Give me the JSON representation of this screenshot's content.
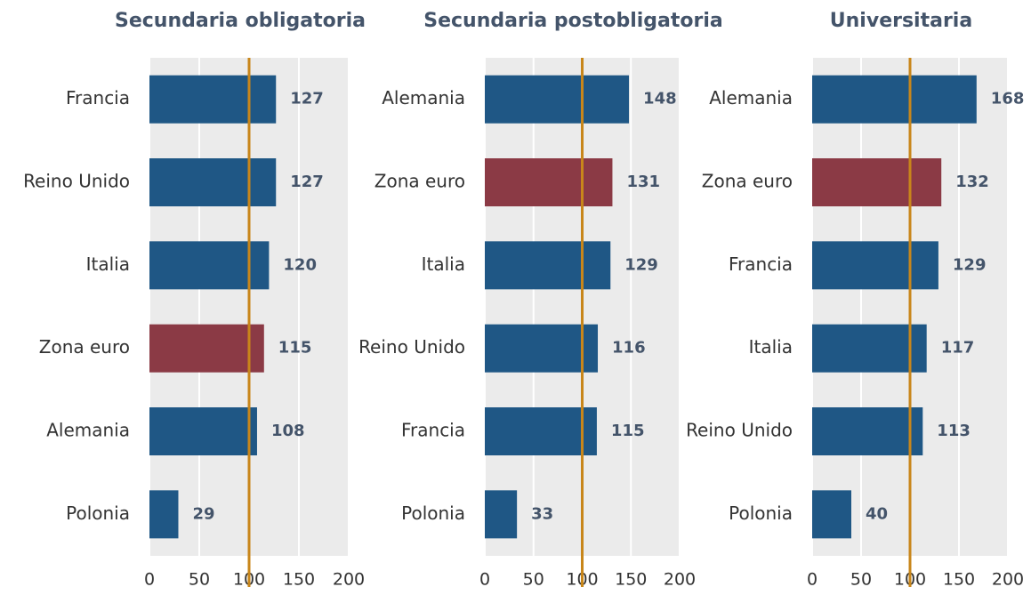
{
  "chart_data": [
    {
      "type": "barh",
      "title": "Secundaria obligatoria",
      "categories": [
        "Francia",
        "Reino Unido",
        "Italia",
        "Zona euro",
        "Alemania",
        "Polonia"
      ],
      "values": [
        127,
        127,
        120,
        115,
        108,
        29
      ],
      "colors": [
        "#1f5785",
        "#1f5785",
        "#1f5785",
        "#8b3a45",
        "#1f5785",
        "#1f5785"
      ],
      "xlim": [
        0,
        200
      ],
      "xticks": [
        0,
        50,
        100,
        150,
        200
      ],
      "grid": true,
      "reference_line": 100,
      "reference_color": "#c8861a"
    },
    {
      "type": "barh",
      "title": "Secundaria postobligatoria",
      "categories": [
        "Alemania",
        "Zona euro",
        "Italia",
        "Reino Unido",
        "Francia",
        "Polonia"
      ],
      "values": [
        148,
        131,
        129,
        116,
        115,
        33
      ],
      "colors": [
        "#1f5785",
        "#8b3a45",
        "#1f5785",
        "#1f5785",
        "#1f5785",
        "#1f5785"
      ],
      "xlim": [
        0,
        200
      ],
      "xticks": [
        0,
        50,
        100,
        150,
        200
      ],
      "grid": true,
      "reference_line": 100,
      "reference_color": "#c8861a"
    },
    {
      "type": "barh",
      "title": "Universitaria",
      "categories": [
        "Alemania",
        "Zona euro",
        "Francia",
        "Italia",
        "Reino Unido",
        "Polonia"
      ],
      "values": [
        168,
        132,
        129,
        117,
        113,
        40
      ],
      "colors": [
        "#1f5785",
        "#8b3a45",
        "#1f5785",
        "#1f5785",
        "#1f5785",
        "#1f5785"
      ],
      "xlim": [
        0,
        200
      ],
      "xticks": [
        0,
        50,
        100,
        150,
        200
      ],
      "grid": true,
      "reference_line": 100,
      "reference_color": "#c8861a"
    }
  ]
}
